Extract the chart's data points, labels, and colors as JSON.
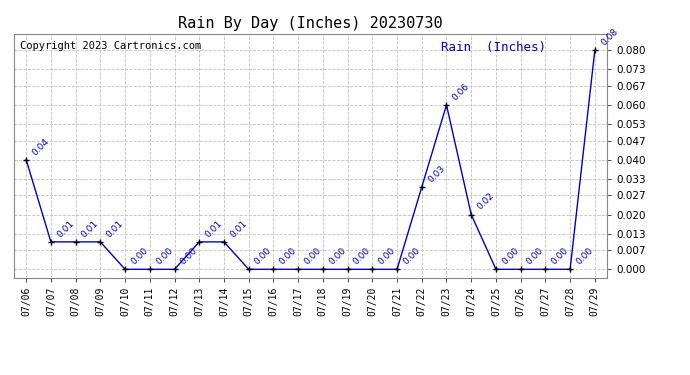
{
  "title": "Rain By Day (Inches) 20230730",
  "copyright": "Copyright 2023 Cartronics.com",
  "legend_label": "Rain  (Inches)",
  "dates": [
    "07/06",
    "07/07",
    "07/08",
    "07/09",
    "07/10",
    "07/11",
    "07/12",
    "07/13",
    "07/14",
    "07/15",
    "07/16",
    "07/17",
    "07/18",
    "07/19",
    "07/20",
    "07/21",
    "07/22",
    "07/23",
    "07/24",
    "07/25",
    "07/26",
    "07/27",
    "07/28",
    "07/29"
  ],
  "values": [
    0.04,
    0.01,
    0.01,
    0.01,
    0.0,
    0.0,
    0.0,
    0.01,
    0.01,
    0.0,
    0.0,
    0.0,
    0.0,
    0.0,
    0.0,
    0.0,
    0.03,
    0.06,
    0.02,
    0.0,
    0.0,
    0.0,
    0.0,
    0.08
  ],
  "line_color": "#0000cc",
  "marker_color": "#000000",
  "grid_color": "#c0c0c0",
  "background_color": "#ffffff",
  "title_color": "#000000",
  "copyright_color": "#000000",
  "legend_color": "#0000cc",
  "yticks": [
    0.0,
    0.007,
    0.013,
    0.02,
    0.027,
    0.033,
    0.04,
    0.047,
    0.053,
    0.06,
    0.067,
    0.073,
    0.08
  ],
  "ylim": [
    -0.003,
    0.086
  ],
  "label_fontsize": 6.5,
  "title_fontsize": 11,
  "copyright_fontsize": 7.5,
  "tick_fontsize": 7.5,
  "xtick_fontsize": 7
}
